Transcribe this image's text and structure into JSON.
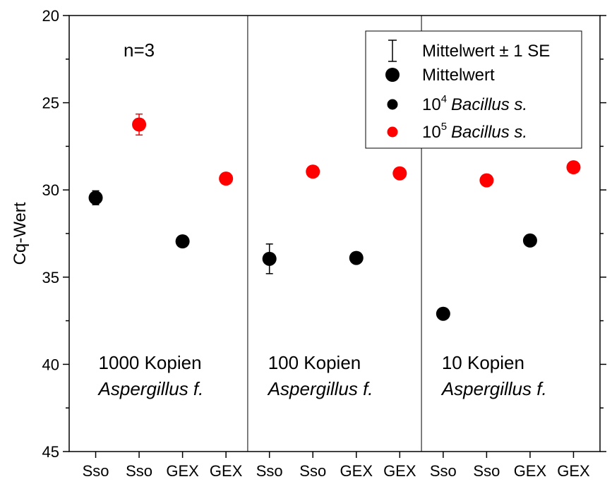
{
  "chart_data": {
    "type": "scatter",
    "ylabel": "Cq-Wert",
    "ylim": [
      20,
      45
    ],
    "y_inverted": true,
    "yticks": [
      "20",
      "25",
      "30",
      "35",
      "40",
      "45"
    ],
    "categories": [
      "Sso",
      "Sso",
      "GEX",
      "GEX",
      "Sso",
      "Sso",
      "GEX",
      "GEX",
      "Sso",
      "Sso",
      "GEX",
      "GEX"
    ],
    "annotation_n": "n=3",
    "panels": [
      {
        "line1": "1000 Kopien",
        "line2": "Aspergillus f."
      },
      {
        "line1": "100 Kopien",
        "line2": "Aspergillus f."
      },
      {
        "line1": "10 Kopien",
        "line2": "Aspergillus f."
      }
    ],
    "series": [
      {
        "name": "10^4 Bacillus s.",
        "color": "#000000",
        "points": [
          {
            "x": 1,
            "y": 30.45,
            "err": 0.4
          },
          {
            "x": 3,
            "y": 32.95,
            "err": null
          },
          {
            "x": 5,
            "y": 33.95,
            "err": 0.85
          },
          {
            "x": 7,
            "y": 33.9,
            "err": null
          },
          {
            "x": 9,
            "y": 37.1,
            "err": null
          },
          {
            "x": 11,
            "y": 32.9,
            "err": null
          }
        ]
      },
      {
        "name": "10^5 Bacillus s.",
        "color": "#ff0000",
        "points": [
          {
            "x": 2,
            "y": 26.25,
            "err": 0.6
          },
          {
            "x": 4,
            "y": 29.35,
            "err": null
          },
          {
            "x": 6,
            "y": 28.95,
            "err": null
          },
          {
            "x": 8,
            "y": 29.05,
            "err": null
          },
          {
            "x": 10,
            "y": 29.45,
            "err": null
          },
          {
            "x": 12,
            "y": 28.7,
            "err": null
          }
        ]
      }
    ],
    "legend": {
      "entries": [
        {
          "label": "Mittelwert ± 1 SE",
          "symbol": "errorbar",
          "color": "#000000"
        },
        {
          "label": "Mittelwert",
          "symbol": "big-dot",
          "color": "#000000"
        },
        {
          "label_base": "10",
          "label_sup": "4",
          "label_it": "Bacillus s.",
          "symbol": "dot",
          "color": "#000000"
        },
        {
          "label_base": "10",
          "label_sup": "5",
          "label_it": "Bacillus s.",
          "symbol": "dot",
          "color": "#ff0000"
        }
      ],
      "placement": "top-right"
    }
  }
}
